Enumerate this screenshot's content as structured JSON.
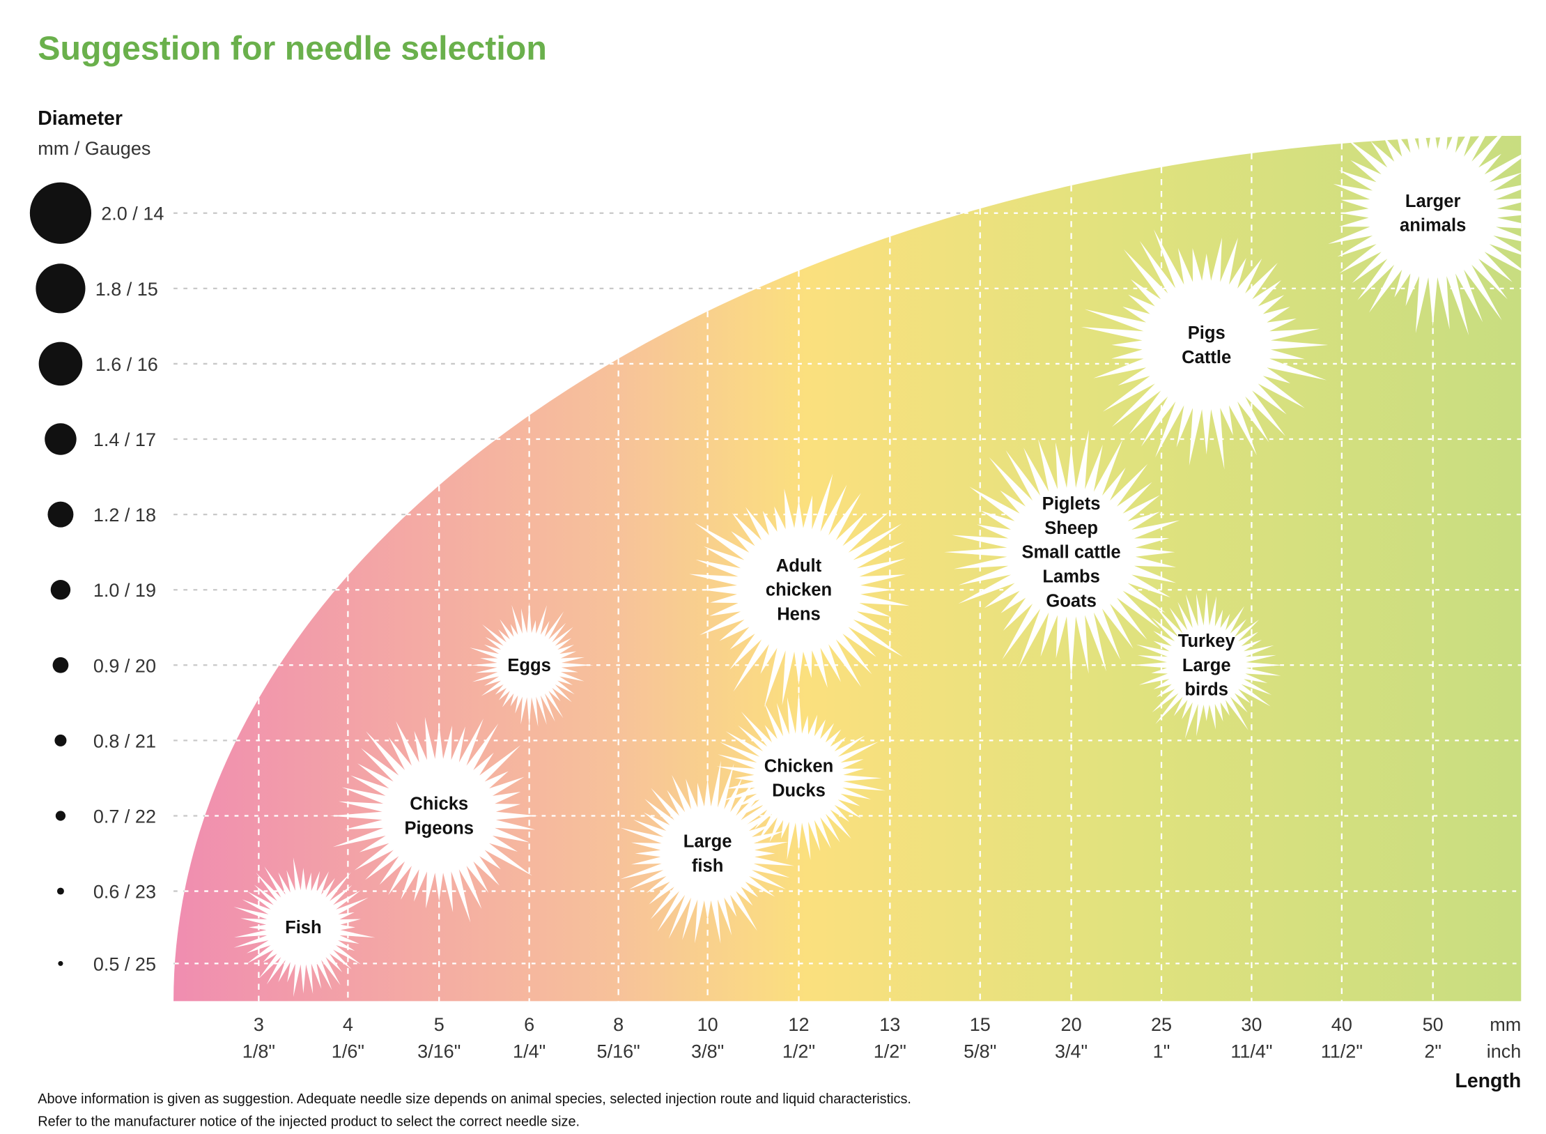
{
  "title": "Suggestion for needle selection",
  "footnote": [
    "Above information is given as suggestion. Adequate needle size depends on animal species, selected injection route and liquid characteristics.",
    "Refer to the manufacturer notice of the injected product to select the correct needle size."
  ],
  "chart_data": {
    "type": "scatter",
    "title": "Suggestion for needle selection",
    "ylabel": "Diameter",
    "ylabel_units": "mm / Gauges",
    "xlabel": "Length",
    "x_units": [
      "mm",
      "inch"
    ],
    "grid": true,
    "colors": {
      "title": "#6ab04c",
      "gradient": [
        "#f08db0",
        "#f7c29a",
        "#fbe07e",
        "#e1e27e",
        "#c8dd80"
      ],
      "markers": "#ffffff",
      "dots": "#111111"
    },
    "y_ticks": [
      {
        "mm": 2.0,
        "label": "2.0 / 14"
      },
      {
        "mm": 1.8,
        "label": "1.8 / 15"
      },
      {
        "mm": 1.6,
        "label": "1.6 / 16"
      },
      {
        "mm": 1.4,
        "label": "1.4 / 17"
      },
      {
        "mm": 1.2,
        "label": "1.2 / 18"
      },
      {
        "mm": 1.0,
        "label": "1.0 / 19"
      },
      {
        "mm": 0.9,
        "label": "0.9 / 20"
      },
      {
        "mm": 0.8,
        "label": "0.8 / 21"
      },
      {
        "mm": 0.7,
        "label": "0.7 / 22"
      },
      {
        "mm": 0.6,
        "label": "0.6 / 23"
      },
      {
        "mm": 0.5,
        "label": "0.5 / 25"
      }
    ],
    "x_ticks": [
      {
        "mm": "3",
        "inch": "1/8\""
      },
      {
        "mm": "4",
        "inch": "1/6\""
      },
      {
        "mm": "5",
        "inch": "3/16\""
      },
      {
        "mm": "6",
        "inch": "1/4\""
      },
      {
        "mm": "8",
        "inch": "5/16\""
      },
      {
        "mm": "10",
        "inch": "3/8\""
      },
      {
        "mm": "12",
        "inch": "1/2\""
      },
      {
        "mm": "13",
        "inch": "1/2\""
      },
      {
        "mm": "15",
        "inch": "5/8\""
      },
      {
        "mm": "20",
        "inch": "3/4\""
      },
      {
        "mm": "25",
        "inch": "1\""
      },
      {
        "mm": "30",
        "inch": "11/4\""
      },
      {
        "mm": "40",
        "inch": "11/2\""
      },
      {
        "mm": "50",
        "inch": "2\""
      }
    ],
    "points": [
      {
        "label": [
          "Fish"
        ],
        "length_mm": 3.5,
        "diameter_mm": 0.55
      },
      {
        "label": [
          "Chicks",
          "Pigeons"
        ],
        "length_mm": 5,
        "diameter_mm": 0.7
      },
      {
        "label": [
          "Eggs"
        ],
        "length_mm": 6,
        "diameter_mm": 0.9
      },
      {
        "label": [
          "Large",
          "fish"
        ],
        "length_mm": 10,
        "diameter_mm": 0.65
      },
      {
        "label": [
          "Chicken",
          "Ducks"
        ],
        "length_mm": 12,
        "diameter_mm": 0.75
      },
      {
        "label": [
          "Adult",
          "chicken",
          "Hens"
        ],
        "length_mm": 12,
        "diameter_mm": 1.0
      },
      {
        "label": [
          "Piglets",
          "Sheep",
          "Small cattle",
          "Lambs",
          "Goats"
        ],
        "length_mm": 20,
        "diameter_mm": 1.1
      },
      {
        "label": [
          "Turkey",
          "Large",
          "birds"
        ],
        "length_mm": 27.5,
        "diameter_mm": 0.9
      },
      {
        "label": [
          "Pigs",
          "Cattle"
        ],
        "length_mm": 27.5,
        "diameter_mm": 1.65
      },
      {
        "label": [
          "Larger",
          "animals"
        ],
        "length_mm": 50,
        "diameter_mm": 2.0
      }
    ]
  }
}
